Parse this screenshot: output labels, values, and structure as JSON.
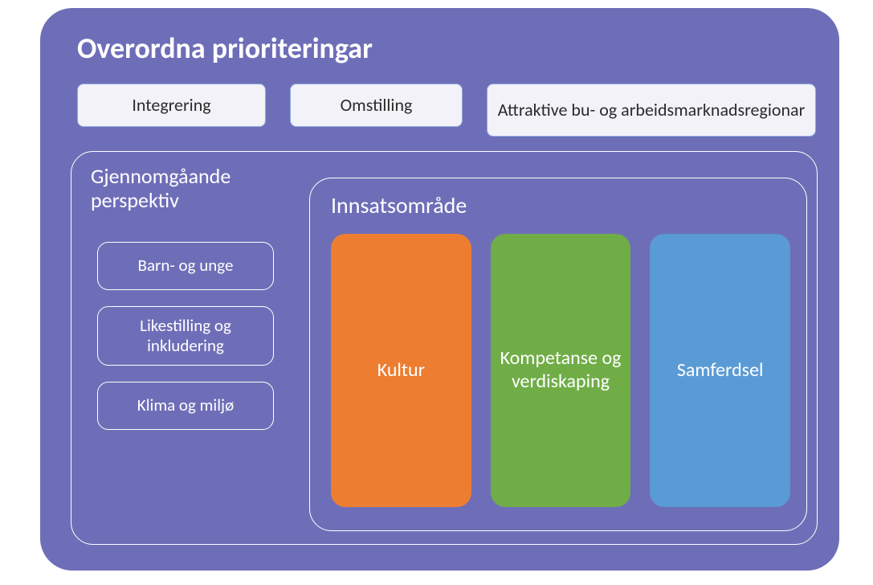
{
  "diagram": {
    "type": "infographic",
    "background_color": "#ffffff",
    "container": {
      "background_color": "#6e6eb8",
      "border_radius": 40,
      "title": "Overordna prioriteringar",
      "title_color": "#ffffff",
      "title_fontsize": 36,
      "title_fontweight": 700
    },
    "top_tags": {
      "background_color": "#f3f2f9",
      "border_color": "#8faadc",
      "text_color": "#2b2b2b",
      "fontsize": 22,
      "border_radius": 8,
      "items": [
        "Integrering",
        "Omstilling",
        "Attraktive bu- og arbeidsmarknadsregionar"
      ]
    },
    "perspectives": {
      "title": "Gjennomgåande perspektiv",
      "title_color": "#ffffff",
      "title_fontsize": 26,
      "border_color": "#ffffff",
      "border_radius": 28,
      "pills": {
        "border_color": "#ffffff",
        "text_color": "#ffffff",
        "fontsize": 21,
        "border_radius": 14,
        "items": [
          "Barn- og unge",
          "Likestilling og inkludering",
          "Klima og miljø"
        ]
      }
    },
    "innsats": {
      "title": "Innsatsområde",
      "title_color": "#ffffff",
      "title_fontsize": 28,
      "border_color": "#ffffff",
      "border_radius": 28,
      "cards": {
        "fontsize": 24,
        "text_color": "#ffffff",
        "border_radius": 18,
        "items": [
          {
            "label": "Kultur",
            "color": "#ed7d31"
          },
          {
            "label": "Kompetanse og verdiskaping",
            "color": "#70ad47"
          },
          {
            "label": "Samferdsel",
            "color": "#5b9bd5"
          }
        ]
      }
    }
  }
}
